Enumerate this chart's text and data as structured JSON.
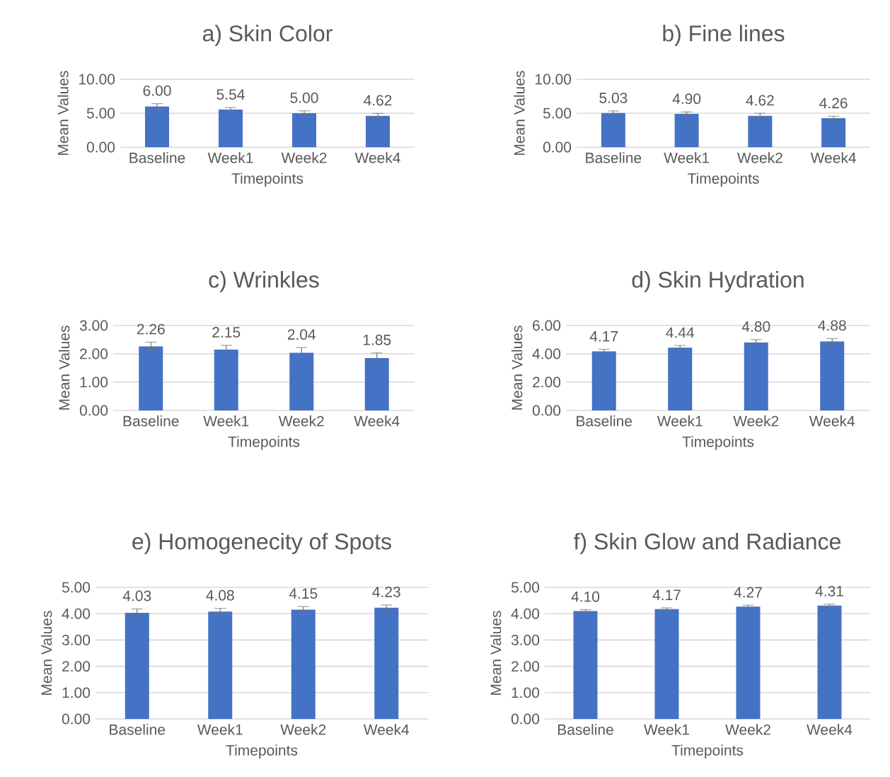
{
  "chart_data": [
    {
      "type": "bar",
      "title": "a) Skin Color",
      "xlabel": "Timepoints",
      "ylabel": "Mean Values",
      "categories": [
        "Baseline",
        "Week1",
        "Week2",
        "Week4"
      ],
      "values": [
        6.0,
        5.54,
        5.0,
        4.62
      ],
      "value_labels": [
        "6.00",
        "5.54",
        "5.00",
        "4.62"
      ],
      "errors": [
        0.4,
        0.3,
        0.35,
        0.35
      ],
      "color": "#4472c4",
      "ylim": [
        0,
        10
      ],
      "yticks": [
        {
          "value": 0,
          "label": "0.00"
        },
        {
          "value": 5,
          "label": "5.00"
        },
        {
          "value": 10,
          "label": "10.00"
        }
      ],
      "grid": "y"
    },
    {
      "type": "bar",
      "title": "b) Fine lines",
      "xlabel": "Timepoints",
      "ylabel": "Mean Values",
      "categories": [
        "Baseline",
        "Week1",
        "Week2",
        "Week4"
      ],
      "values": [
        5.03,
        4.9,
        4.62,
        4.26
      ],
      "value_labels": [
        "5.03",
        "4.90",
        "4.62",
        "4.26"
      ],
      "errors": [
        0.3,
        0.3,
        0.35,
        0.3
      ],
      "color": "#4472c4",
      "ylim": [
        0,
        10
      ],
      "yticks": [
        {
          "value": 0,
          "label": "0.00"
        },
        {
          "value": 5,
          "label": "5.00"
        },
        {
          "value": 10,
          "label": "10.00"
        }
      ],
      "grid": "y"
    },
    {
      "type": "bar",
      "title": "c) Wrinkles",
      "xlabel": "Timepoints",
      "ylabel": "Mean Values",
      "categories": [
        "Baseline",
        "Week1",
        "Week2",
        "Week4"
      ],
      "values": [
        2.26,
        2.15,
        2.04,
        1.85
      ],
      "value_labels": [
        "2.26",
        "2.15",
        "2.04",
        "1.85"
      ],
      "errors": [
        0.15,
        0.15,
        0.18,
        0.18
      ],
      "color": "#4472c4",
      "ylim": [
        0,
        3
      ],
      "yticks": [
        {
          "value": 0,
          "label": "0.00"
        },
        {
          "value": 1,
          "label": "1.00"
        },
        {
          "value": 2,
          "label": "2.00"
        },
        {
          "value": 3,
          "label": "3.00"
        }
      ],
      "grid": "y"
    },
    {
      "type": "bar",
      "title": "d) Skin Hydration",
      "xlabel": "Timepoints",
      "ylabel": "Mean Values",
      "categories": [
        "Baseline",
        "Week1",
        "Week2",
        "Week4"
      ],
      "values": [
        4.17,
        4.44,
        4.8,
        4.88
      ],
      "value_labels": [
        "4.17",
        "4.44",
        "4.80",
        "4.88"
      ],
      "errors": [
        0.15,
        0.15,
        0.2,
        0.2
      ],
      "color": "#4472c4",
      "ylim": [
        0,
        6
      ],
      "yticks": [
        {
          "value": 0,
          "label": "0.00"
        },
        {
          "value": 2,
          "label": "2.00"
        },
        {
          "value": 4,
          "label": "4.00"
        },
        {
          "value": 6,
          "label": "6.00"
        }
      ],
      "grid": "y"
    },
    {
      "type": "bar",
      "title": "e) Homogenecity of Spots",
      "xlabel": "Timepoints",
      "ylabel": "Mean Values",
      "categories": [
        "Baseline",
        "Week1",
        "Week2",
        "Week4"
      ],
      "values": [
        4.03,
        4.08,
        4.15,
        4.23
      ],
      "value_labels": [
        "4.03",
        "4.08",
        "4.15",
        "4.23"
      ],
      "errors": [
        0.15,
        0.12,
        0.12,
        0.1
      ],
      "color": "#4472c4",
      "ylim": [
        0,
        5
      ],
      "yticks": [
        {
          "value": 0,
          "label": "0.00"
        },
        {
          "value": 1,
          "label": "1.00"
        },
        {
          "value": 2,
          "label": "2.00"
        },
        {
          "value": 3,
          "label": "3.00"
        },
        {
          "value": 4,
          "label": "4.00"
        },
        {
          "value": 5,
          "label": "5.00"
        }
      ],
      "grid": "y"
    },
    {
      "type": "bar",
      "title": "f) Skin Glow and Radiance",
      "xlabel": "Timepoints",
      "ylabel": "Mean Values",
      "categories": [
        "Baseline",
        "Week1",
        "Week2",
        "Week4"
      ],
      "values": [
        4.1,
        4.17,
        4.27,
        4.31
      ],
      "value_labels": [
        "4.10",
        "4.17",
        "4.27",
        "4.31"
      ],
      "errors": [
        0.05,
        0.05,
        0.05,
        0.05
      ],
      "color": "#4472c4",
      "ylim": [
        0,
        5
      ],
      "yticks": [
        {
          "value": 0,
          "label": "0.00"
        },
        {
          "value": 1,
          "label": "1.00"
        },
        {
          "value": 2,
          "label": "2.00"
        },
        {
          "value": 3,
          "label": "3.00"
        },
        {
          "value": 4,
          "label": "4.00"
        },
        {
          "value": 5,
          "label": "5.00"
        }
      ],
      "grid": "y"
    }
  ]
}
